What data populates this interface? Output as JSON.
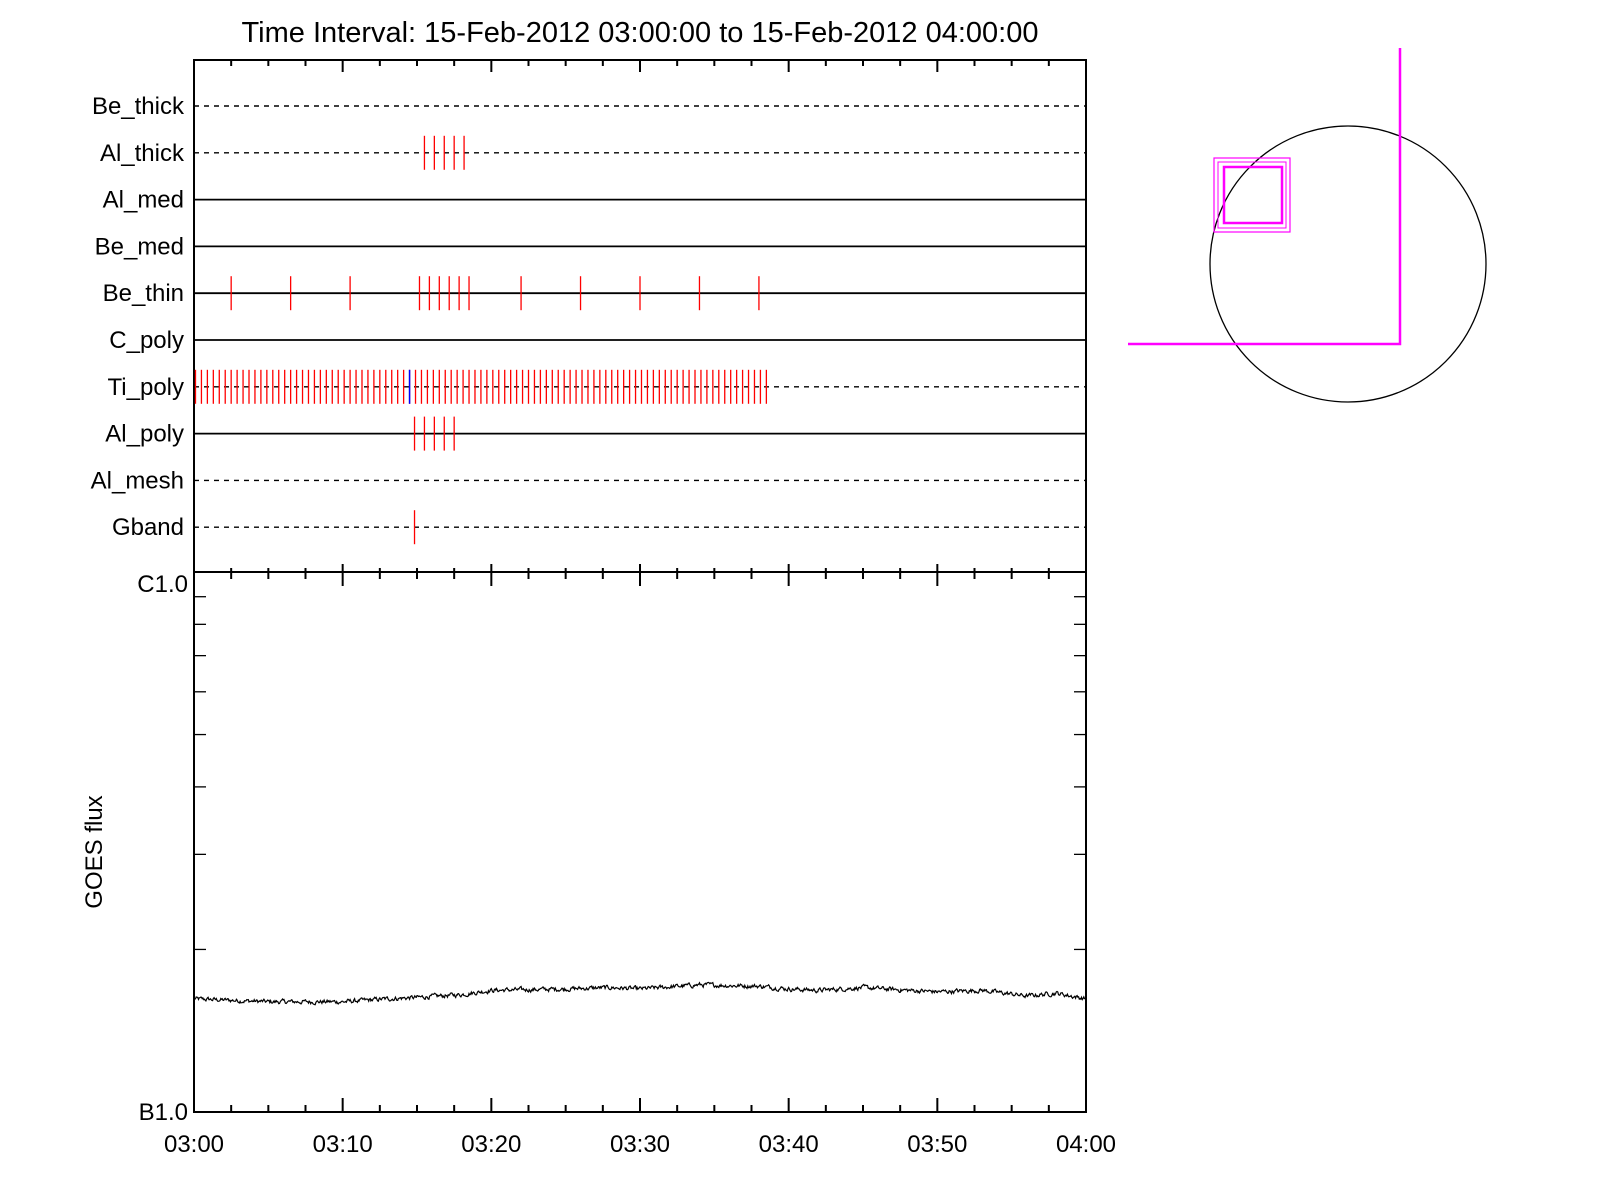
{
  "chart_data": [
    {
      "type": "event-timeline",
      "title": "Time Interval: 15-Feb-2012 03:00:00 to 15-Feb-2012 04:00:00",
      "x_range": [
        "03:00",
        "04:00"
      ],
      "rows": [
        {
          "label": "Be_thick",
          "line": "dashed",
          "events": []
        },
        {
          "label": "Al_thick",
          "line": "dashed",
          "events": [
            "03:15:30",
            "03:16:10",
            "03:16:50",
            "03:17:30",
            "03:18:10"
          ]
        },
        {
          "label": "Al_med",
          "line": "solid",
          "events": []
        },
        {
          "label": "Be_med",
          "line": "solid",
          "events": []
        },
        {
          "label": "Be_thin",
          "line": "solid",
          "events": [
            "03:02:30",
            "03:06:30",
            "03:10:30",
            "03:15:10",
            "03:15:50",
            "03:16:30",
            "03:17:10",
            "03:17:50",
            "03:18:30",
            "03:22:00",
            "03:26:00",
            "03:30:00",
            "03:34:00",
            "03:38:00"
          ]
        },
        {
          "label": "C_poly",
          "line": "solid",
          "events": []
        },
        {
          "label": "Ti_poly",
          "line": "dashed",
          "events": "every ~24 s from 03:00:00 to 03:38:30",
          "event_color": "#ff0000",
          "highlight_event": {
            "time": "03:14:30",
            "color": "#0000ff"
          }
        },
        {
          "label": "Al_poly",
          "line": "solid",
          "events": [
            "03:14:50",
            "03:15:30",
            "03:16:10",
            "03:16:50",
            "03:17:30"
          ]
        },
        {
          "label": "Al_mesh",
          "line": "dashed",
          "events": []
        },
        {
          "label": "Gband",
          "line": "dashed",
          "events": [
            "03:14:50"
          ]
        }
      ],
      "event_color": "#ff0000"
    },
    {
      "type": "line",
      "ylabel": "GOES flux",
      "y_scale": "log",
      "y_ticks": [
        "B1.0",
        "C1.0"
      ],
      "x_ticks": [
        "03:00",
        "03:10",
        "03:20",
        "03:30",
        "03:40",
        "03:50",
        "04:00"
      ],
      "series": [
        {
          "color": "#000000",
          "x": [
            "03:00",
            "03:05",
            "03:10",
            "03:13",
            "03:15",
            "03:18",
            "03:20",
            "03:25",
            "03:28",
            "03:30",
            "03:34",
            "03:38",
            "03:40",
            "03:42",
            "03:45",
            "03:48",
            "03:50",
            "03:53",
            "03:56",
            "03:58",
            "04:00"
          ],
          "values": [
            1.62,
            1.6,
            1.6,
            1.62,
            1.63,
            1.65,
            1.68,
            1.69,
            1.7,
            1.69,
            1.72,
            1.71,
            1.69,
            1.68,
            1.7,
            1.68,
            1.67,
            1.68,
            1.64,
            1.66,
            1.62
          ]
        }
      ]
    }
  ],
  "solar_map": {
    "disk_color": "#000000",
    "box_color": "#ff00ff"
  }
}
